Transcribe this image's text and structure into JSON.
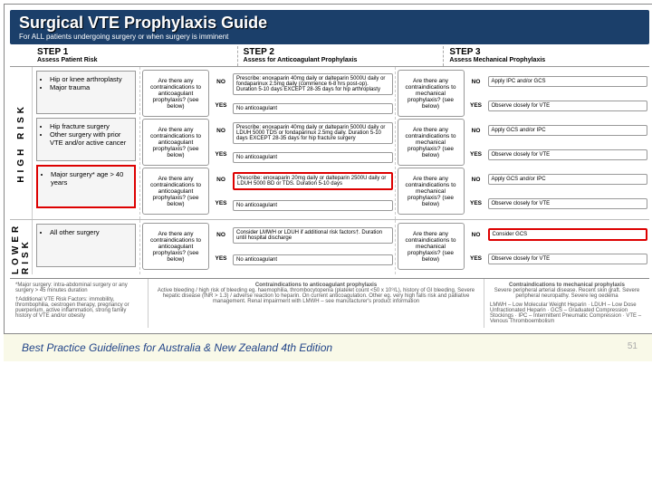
{
  "title": {
    "main": "Surgical VTE Prophylaxis Guide",
    "sub": "For ALL patients undergoing surgery or when surgery is imminent"
  },
  "steps": [
    {
      "step": "STEP 1",
      "label": "Assess Patient Risk"
    },
    {
      "step": "STEP 2",
      "label": "Assess for Anticoagulant Prophylaxis"
    },
    {
      "step": "STEP 3",
      "label": "Assess Mechanical Prophylaxis"
    }
  ],
  "riskHigh": "HIGH RISK",
  "riskLower": "LOWER RISK",
  "riskItems": [
    {
      "lines": [
        "Hip or knee arthroplasty",
        "Major trauma"
      ],
      "hl": false
    },
    {
      "lines": [
        "Hip fracture surgery",
        "Other surgery with prior VTE and/or active cancer"
      ],
      "hl": false
    },
    {
      "lines": [
        "Major surgery* age > 40 years"
      ],
      "hl": true
    },
    {
      "lines": [
        "All other surgery"
      ],
      "hl": false
    }
  ],
  "q2": "Are there any contraindications to anticoagulant prophylaxis? (see below)",
  "q3": "Are there any contraindications to mechanical prophylaxis? (see below)",
  "no": "NO",
  "yes": "YES",
  "step2Rows": [
    {
      "no": "Prescribe: enoxaparin 40mg daily or dalteparin 5000U daily or fondaparinux 2.5mg daily (commence 6-8 hrs post-op). Duration 5-10 days EXCEPT 28-35 days for hip arthroplasty",
      "yes": "No anticoagulant",
      "hl": false
    },
    {
      "no": "Prescribe: enoxaparin 40mg daily or dalteparin 5000U daily or LDUH 5000 TDS or fondaparinux 2.5mg daily. Duration 5-10 days EXCEPT 28-35 days for hip fracture surgery",
      "yes": "No anticoagulant",
      "hl": false
    },
    {
      "no": "Prescribe: enoxaparin 20mg daily or dalteparin 2500U daily or LDUH 5000 BD or TDS. Duration 5-10 days",
      "yes": "No anticoagulant",
      "hl": true
    },
    {
      "no": "Consider LMWH or LDUH if additional risk factors†. Duration until hospital discharge",
      "yes": "No anticoagulant",
      "hl": false
    }
  ],
  "step3Rows": [
    {
      "no": "Apply IPC and/or GCS",
      "yes": "Observe closely for VTE",
      "hl": false
    },
    {
      "no": "Apply GCS and/or IPC",
      "yes": "Observe closely for VTE",
      "hl": false
    },
    {
      "no": "Apply GCS and/or IPC",
      "yes": "Observe closely for VTE",
      "hl": false
    },
    {
      "no": "Consider GCS",
      "yes": "Observe closely for VTE",
      "hl": true
    }
  ],
  "footer": {
    "major": "*Major surgery: intra-abdominal surgery or any surgery > 45 minutes duration",
    "additional": "†Additional VTE Risk Factors: immobility, thrombophilia, oestrogen therapy, pregnancy or puerperium, active inflammation, strong family history of VTE and/or obesity",
    "contraAC": {
      "title": "Contraindications to anticoagulant prophylaxis",
      "body": "Active bleeding / high risk of bleeding eg. haemophilia, thrombocytopenia (platelet count <50 x 10⁹/L), history of GI bleeding. Severe hepatic disease (INR > 1.3) / adverse reaction to heparin. On current anticoagulation. Other eg. very high falls risk and palliative management. Renal impairment with LMWH – see manufacturer's product information"
    },
    "contraMech": {
      "title": "Contraindications to mechanical prophylaxis",
      "body": "Severe peripheral arterial disease. Recent skin graft. Severe peripheral neuropathy. Severe leg oedema"
    },
    "key": "LMWH – Low Molecular Weight Heparin · LDUH – Low Dose Unfractionated Heparin · GCS – Graduated Compression Stockings · IPC – Intermittent Pneumatic Compression · VTE – Venous Thromboembolism"
  },
  "caption": "Best Practice Guidelines for Australia & New Zealand 4th Edition",
  "page": "51"
}
